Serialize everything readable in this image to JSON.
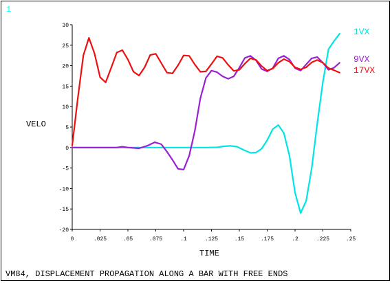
{
  "window_number": "1",
  "footer_title": "VM84, DISPLACEMENT PROPAGATION ALONG A BAR WITH FREE ENDS",
  "colors": {
    "axis": "#000000",
    "series_1VX": "#00e5e5",
    "series_9VX": "#9a1fd6",
    "series_17VX": "#ee1010"
  },
  "chart_data": {
    "type": "line",
    "title": "",
    "xlabel": "TIME",
    "ylabel": "VELO",
    "xlim": [
      0,
      0.25
    ],
    "ylim": [
      -20,
      30
    ],
    "x_ticks": [
      0,
      0.025,
      0.05,
      0.075,
      0.1,
      0.125,
      0.15,
      0.175,
      0.2,
      0.225,
      0.25
    ],
    "x_tick_labels": [
      "0",
      ".025",
      ".05",
      ".075",
      ".1",
      ".125",
      ".15",
      ".175",
      ".2",
      ".225",
      ".25"
    ],
    "y_ticks": [
      -20,
      -15,
      -10,
      -5,
      0,
      5,
      10,
      15,
      20,
      25,
      30
    ],
    "y_tick_labels": [
      "-20",
      "-15",
      "-10",
      "-5",
      "0",
      "5",
      "10",
      "15",
      "20",
      "25",
      "30"
    ],
    "grid": false,
    "legend": "right",
    "series": [
      {
        "name": "1VX",
        "color": "#00e5e5",
        "points": [
          [
            0,
            0
          ],
          [
            0.02,
            0
          ],
          [
            0.04,
            0
          ],
          [
            0.06,
            0
          ],
          [
            0.08,
            0
          ],
          [
            0.1,
            0
          ],
          [
            0.12,
            0
          ],
          [
            0.13,
            0.05
          ],
          [
            0.136,
            0.3
          ],
          [
            0.142,
            0.4
          ],
          [
            0.148,
            0.2
          ],
          [
            0.154,
            -0.6
          ],
          [
            0.16,
            -1.3
          ],
          [
            0.165,
            -1.2
          ],
          [
            0.17,
            -0.3
          ],
          [
            0.175,
            1.8
          ],
          [
            0.18,
            4.5
          ],
          [
            0.185,
            5.5
          ],
          [
            0.19,
            3.5
          ],
          [
            0.195,
            -2
          ],
          [
            0.2,
            -11
          ],
          [
            0.205,
            -16
          ],
          [
            0.21,
            -13
          ],
          [
            0.215,
            -5
          ],
          [
            0.22,
            6
          ],
          [
            0.225,
            16
          ],
          [
            0.23,
            24
          ],
          [
            0.235,
            26
          ],
          [
            0.24,
            27.8
          ]
        ]
      },
      {
        "name": "9VX",
        "color": "#9a1fd6",
        "points": [
          [
            0,
            0
          ],
          [
            0.04,
            0
          ],
          [
            0.045,
            0.2
          ],
          [
            0.05,
            0
          ],
          [
            0.06,
            -0.2
          ],
          [
            0.068,
            0.5
          ],
          [
            0.074,
            1.3
          ],
          [
            0.08,
            0.8
          ],
          [
            0.085,
            -1
          ],
          [
            0.09,
            -3
          ],
          [
            0.095,
            -5.2
          ],
          [
            0.1,
            -5.4
          ],
          [
            0.105,
            -2
          ],
          [
            0.11,
            4
          ],
          [
            0.115,
            12
          ],
          [
            0.12,
            17
          ],
          [
            0.125,
            18.8
          ],
          [
            0.13,
            18.4
          ],
          [
            0.135,
            17.4
          ],
          [
            0.14,
            16.8
          ],
          [
            0.145,
            17.4
          ],
          [
            0.15,
            19.5
          ],
          [
            0.155,
            21.9
          ],
          [
            0.16,
            22.4
          ],
          [
            0.165,
            21.3
          ],
          [
            0.17,
            19.2
          ],
          [
            0.175,
            18.6
          ],
          [
            0.18,
            19.4
          ],
          [
            0.185,
            21.8
          ],
          [
            0.19,
            22.4
          ],
          [
            0.195,
            21.5
          ],
          [
            0.2,
            19.4
          ],
          [
            0.205,
            18.8
          ],
          [
            0.21,
            20.3
          ],
          [
            0.215,
            21.8
          ],
          [
            0.22,
            22.1
          ],
          [
            0.225,
            20.7
          ],
          [
            0.23,
            19
          ],
          [
            0.235,
            19.5
          ],
          [
            0.24,
            20.7
          ]
        ]
      },
      {
        "name": "17VX",
        "color": "#ee1010",
        "points": [
          [
            0,
            0.5
          ],
          [
            0.005,
            12
          ],
          [
            0.01,
            22.5
          ],
          [
            0.015,
            26.8
          ],
          [
            0.02,
            23
          ],
          [
            0.025,
            17.2
          ],
          [
            0.03,
            15.9
          ],
          [
            0.035,
            19.5
          ],
          [
            0.04,
            23.2
          ],
          [
            0.045,
            23.8
          ],
          [
            0.05,
            21.5
          ],
          [
            0.055,
            18.5
          ],
          [
            0.06,
            17.6
          ],
          [
            0.065,
            19.6
          ],
          [
            0.07,
            22.6
          ],
          [
            0.075,
            22.9
          ],
          [
            0.08,
            20.6
          ],
          [
            0.085,
            18.3
          ],
          [
            0.09,
            18.1
          ],
          [
            0.095,
            20.1
          ],
          [
            0.1,
            22.5
          ],
          [
            0.105,
            22.4
          ],
          [
            0.11,
            20.3
          ],
          [
            0.115,
            18.5
          ],
          [
            0.12,
            18.6
          ],
          [
            0.125,
            20.4
          ],
          [
            0.13,
            22.3
          ],
          [
            0.135,
            21.9
          ],
          [
            0.14,
            20.2
          ],
          [
            0.145,
            18.7
          ],
          [
            0.15,
            19
          ],
          [
            0.155,
            20.5
          ],
          [
            0.16,
            21.8
          ],
          [
            0.165,
            21.4
          ],
          [
            0.17,
            19.9
          ],
          [
            0.175,
            18.8
          ],
          [
            0.18,
            19.3
          ],
          [
            0.185,
            20.7
          ],
          [
            0.19,
            21.6
          ],
          [
            0.195,
            21
          ],
          [
            0.2,
            19.6
          ],
          [
            0.205,
            19.1
          ],
          [
            0.21,
            19.6
          ],
          [
            0.215,
            20.8
          ],
          [
            0.22,
            21.4
          ],
          [
            0.225,
            20.7
          ],
          [
            0.23,
            19.4
          ],
          [
            0.235,
            18.9
          ],
          [
            0.24,
            18.3
          ]
        ]
      }
    ]
  }
}
